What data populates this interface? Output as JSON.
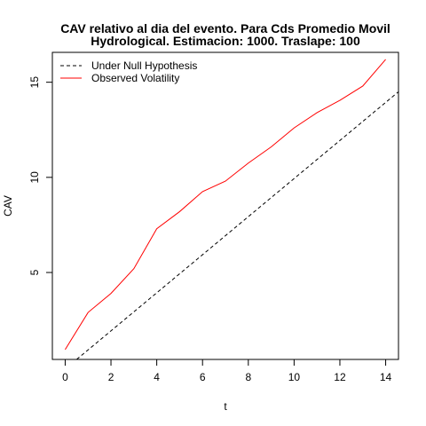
{
  "chart_data": {
    "type": "line",
    "title": "CAV relativo al dia del evento. Para Cds Promedio Movil",
    "subtitle": "Hydrological. Estimacion: 1000. Traslape: 100",
    "xlabel": "t",
    "ylabel": "CAV",
    "xlim": [
      -0.56,
      14.56
    ],
    "ylim": [
      0.43,
      16.57
    ],
    "x_ticks": [
      0,
      2,
      4,
      6,
      8,
      10,
      12,
      14
    ],
    "y_ticks": [
      5,
      10,
      15
    ],
    "grid": false,
    "legend_position": "top-left",
    "series": [
      {
        "name": "Under Null Hypothesis",
        "color": "#000000",
        "dash": "dashed",
        "x": [
          0.5,
          14.56
        ],
        "y": [
          0.43,
          14.5
        ]
      },
      {
        "name": "Observed Volatility",
        "color": "#ff0000",
        "dash": "solid",
        "x": [
          0,
          1,
          2,
          3,
          4,
          5,
          6,
          7,
          8,
          9,
          10,
          11,
          12,
          13,
          14
        ],
        "y": [
          0.95,
          2.9,
          3.9,
          5.2,
          7.3,
          8.2,
          9.25,
          9.8,
          10.75,
          11.6,
          12.6,
          13.4,
          14.05,
          14.8,
          16.2
        ]
      }
    ]
  }
}
